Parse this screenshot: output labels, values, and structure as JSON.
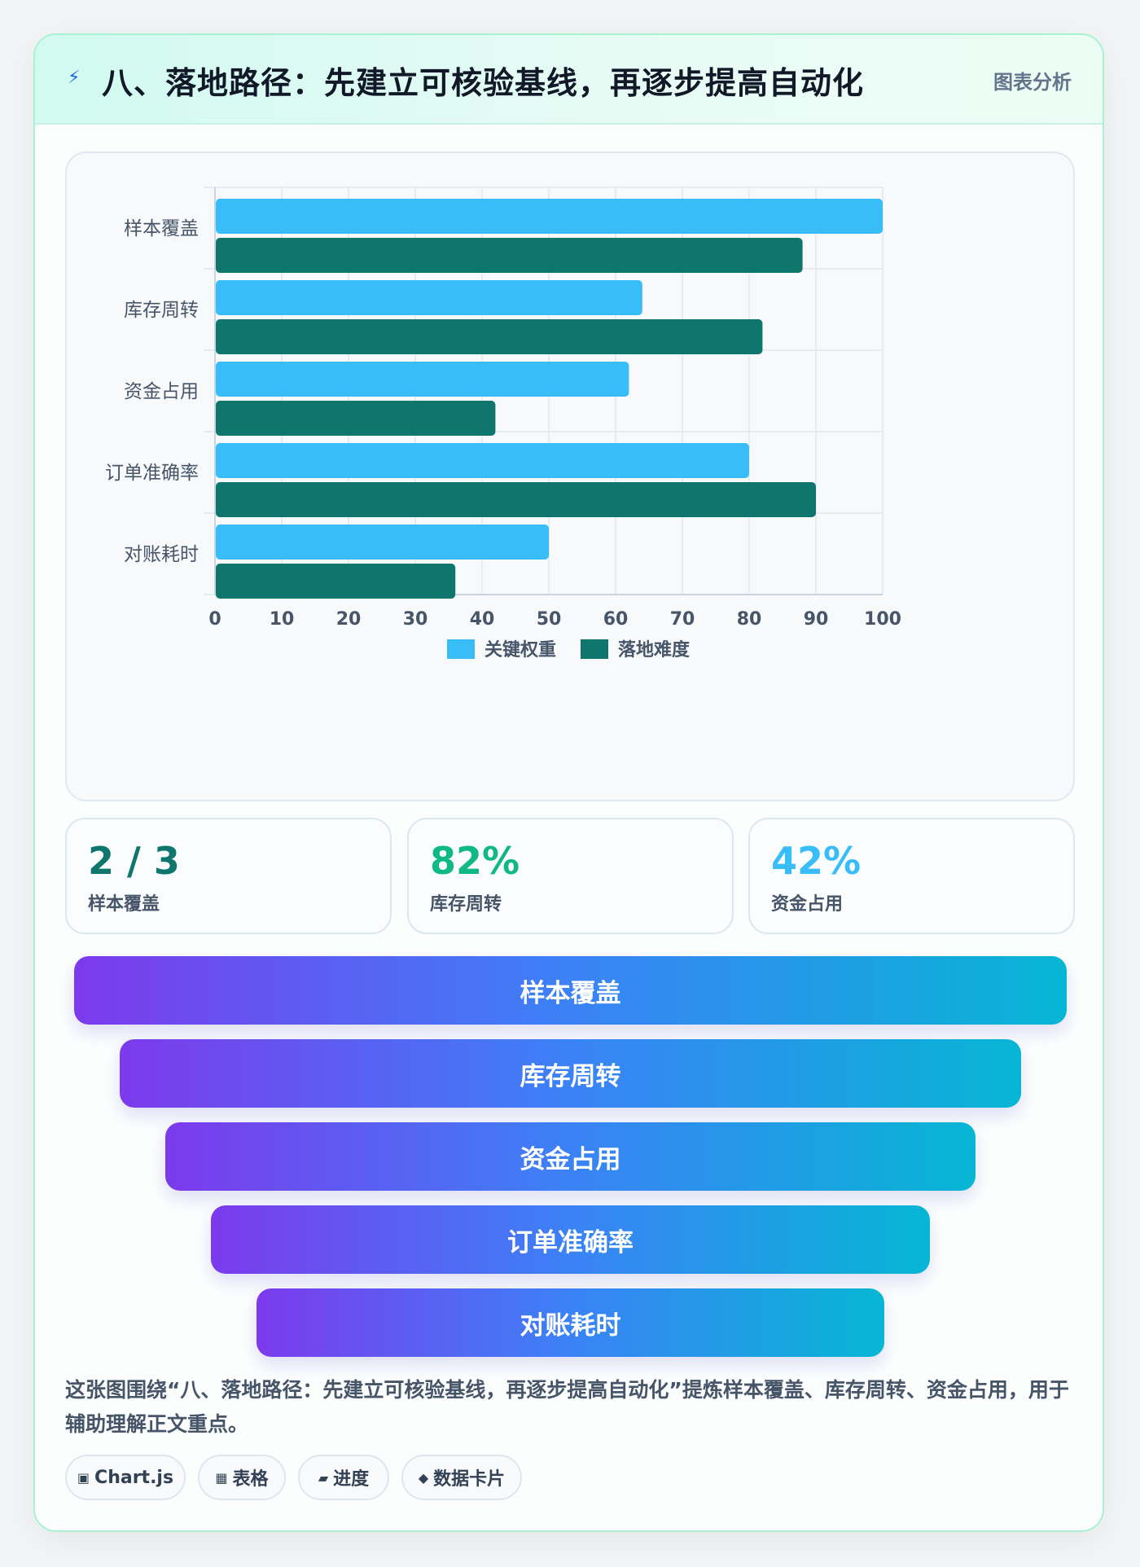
{
  "header": {
    "icon": "lightning-icon",
    "title": "八、落地路径：先建立可核验基线，再逐步提高自动化",
    "tag": "图表分析"
  },
  "chart_data": {
    "type": "bar",
    "orientation": "horizontal",
    "categories": [
      "样本覆盖",
      "库存周转",
      "资金占用",
      "订单准确率",
      "对账耗时"
    ],
    "series": [
      {
        "name": "关键权重",
        "values": [
          100,
          64,
          62,
          80,
          50
        ],
        "color": "#38bdf8"
      },
      {
        "name": "落地难度",
        "values": [
          88,
          82,
          42,
          90,
          36
        ],
        "color": "#0f766e"
      }
    ],
    "xlim": [
      0,
      100
    ],
    "xticks": [
      0,
      10,
      20,
      30,
      40,
      50,
      60,
      70,
      80,
      90,
      100
    ],
    "grid": true,
    "legend": "bottom"
  },
  "stats": [
    {
      "value": "2 / 3",
      "label": "样本覆盖",
      "color": "#0f766e"
    },
    {
      "value": "82%",
      "label": "库存周转",
      "color": "#10b981"
    },
    {
      "value": "42%",
      "label": "资金占用",
      "color": "#38bdf8"
    }
  ],
  "funnel": [
    "样本覆盖",
    "库存周转",
    "资金占用",
    "订单准确率",
    "对账耗时"
  ],
  "summary": "这张图围绕“八、落地路径：先建立可核验基线，再逐步提高自动化”提炼样本覆盖、库存周转、资金占用，用于辅助理解正文重点。",
  "tags": [
    {
      "icon": "▣",
      "label": "Chart.js"
    },
    {
      "icon": "▦",
      "label": "表格"
    },
    {
      "icon": "▰",
      "label": "进度"
    },
    {
      "icon": "◆",
      "label": "数据卡片"
    }
  ]
}
